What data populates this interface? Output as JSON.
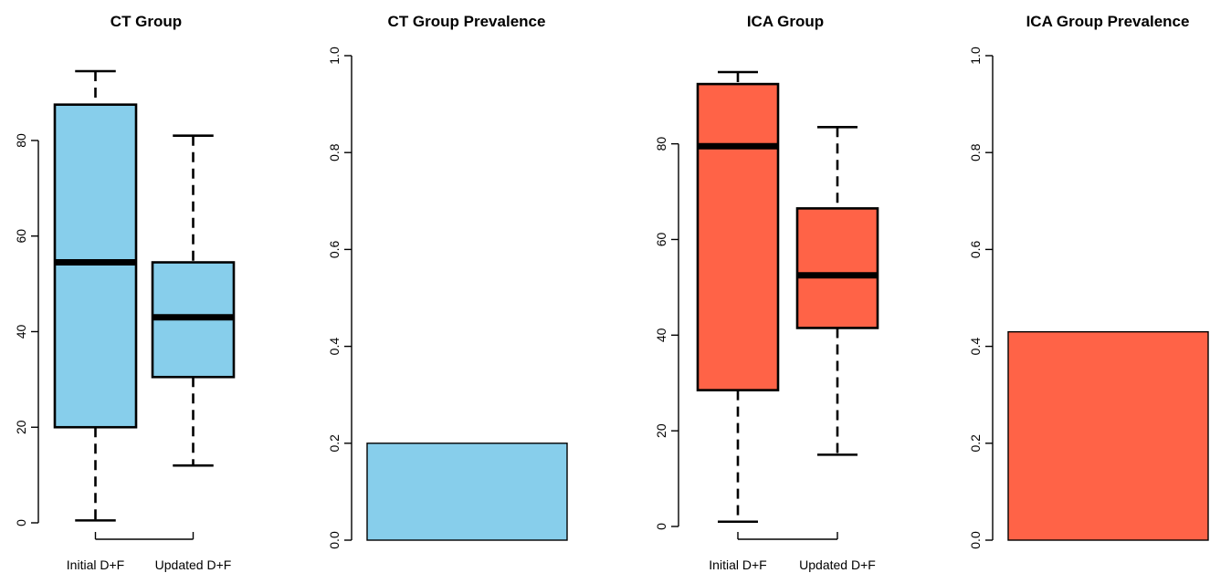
{
  "chart_data": [
    {
      "type": "box",
      "title": "CT Group",
      "xlabel": "",
      "ylabel": "",
      "ylim": [
        0,
        95
      ],
      "yticks": [
        "0",
        "20",
        "40",
        "60",
        "80"
      ],
      "color": "#87CEEB",
      "categories": [
        "Initial D+F",
        "Updated D+F"
      ],
      "boxes": [
        {
          "min": 0.5,
          "q1": 20,
          "median": 54.5,
          "q3": 87.5,
          "max": 94.5
        },
        {
          "min": 12,
          "q1": 30.5,
          "median": 43,
          "q3": 54.5,
          "max": 81
        }
      ]
    },
    {
      "type": "bar",
      "title": "CT Group Prevalence",
      "xlabel": "",
      "ylabel": "",
      "ylim": [
        0,
        1
      ],
      "yticks": [
        "0.0",
        "0.2",
        "0.4",
        "0.6",
        "0.8",
        "1.0"
      ],
      "color": "#87CEEB",
      "values": [
        0.2
      ]
    },
    {
      "type": "box",
      "title": "ICA Group",
      "xlabel": "",
      "ylabel": "",
      "ylim": [
        0,
        95
      ],
      "yticks": [
        "0",
        "20",
        "40",
        "60",
        "80"
      ],
      "color": "#FF6347",
      "categories": [
        "Initial D+F",
        "Updated D+F"
      ],
      "boxes": [
        {
          "min": 1,
          "q1": 28.5,
          "median": 79.5,
          "q3": 92.5,
          "max": 95
        },
        {
          "min": 15,
          "q1": 41.5,
          "median": 52.5,
          "q3": 66.5,
          "max": 83.5
        }
      ]
    },
    {
      "type": "bar",
      "title": "ICA Group Prevalence",
      "xlabel": "",
      "ylabel": "",
      "ylim": [
        0,
        1
      ],
      "yticks": [
        "0.0",
        "0.2",
        "0.4",
        "0.6",
        "0.8",
        "1.0"
      ],
      "color": "#FF6347",
      "values": [
        0.43
      ]
    }
  ]
}
